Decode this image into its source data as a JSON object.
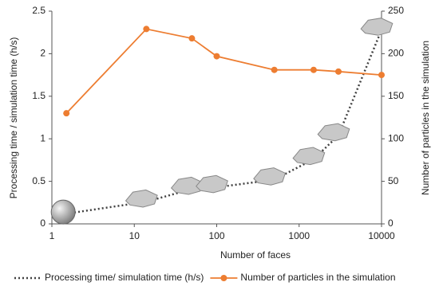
{
  "chart_data": {
    "type": "line",
    "x_label": "Number of faces",
    "y_label": "Processing time / simulation time (h/s)",
    "y2_label": "Number of particles in the simulation",
    "x": [
      1.5,
      14,
      50,
      100,
      500,
      1500,
      3000,
      10000
    ],
    "x_log": true,
    "xlim": [
      1,
      10000
    ],
    "xticks": [
      1,
      10,
      100,
      1000,
      10000
    ],
    "ylim": [
      0,
      2.5
    ],
    "yticks": [
      0,
      0.5,
      1,
      1.5,
      2,
      2.5
    ],
    "y2lim": [
      0,
      250
    ],
    "y2ticks": [
      0,
      50,
      100,
      150,
      200,
      250
    ],
    "grid": false,
    "legend": "bottom",
    "series": [
      {
        "name": "Processing time/ simulation time (h/s)",
        "color": "#404040",
        "dash": "dotted",
        "marker": "particle",
        "values": [
          0.12,
          0.26,
          0.41,
          0.43,
          0.52,
          0.76,
          1.04,
          2.28
        ]
      },
      {
        "name": "Number of particles in the simulation",
        "color": "#ed7d31",
        "dash": "solid",
        "marker": "circle",
        "axis": "y2",
        "values": [
          130,
          229,
          218,
          197,
          181,
          181,
          179,
          175
        ]
      }
    ]
  }
}
